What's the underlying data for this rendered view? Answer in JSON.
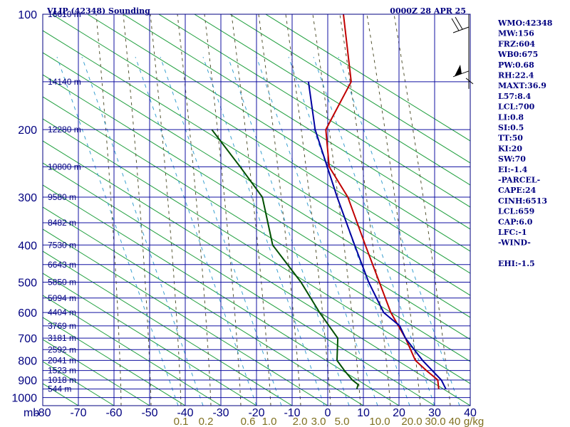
{
  "chart_data": {
    "type": "line",
    "title": "VLIP (42348) Sounding",
    "valid_time": "0000Z 28 APR 25",
    "pressure_axis_label": "mb",
    "temperature_ticks": [
      "-80",
      "-70",
      "-60",
      "-50",
      "-40",
      "-30",
      "-20",
      "-10",
      "0",
      "10",
      "20",
      "30",
      "40"
    ],
    "pressure_ticks": [
      "100",
      "200",
      "300",
      "400",
      "500",
      "600",
      "700",
      "800",
      "900",
      "1000"
    ],
    "mixing_ratio_labels": [
      "0.1",
      "0.2",
      "0.6",
      "1.0",
      "2.0",
      "3.0",
      "5.0",
      "10.0",
      "20.0",
      "30.0",
      "40",
      "g/kg"
    ],
    "height_labels": [
      {
        "p": 100,
        "label": "16610 m"
      },
      {
        "p": 150,
        "label": "14140 m"
      },
      {
        "p": 200,
        "label": "12280 m"
      },
      {
        "p": 250,
        "label": "10800 m"
      },
      {
        "p": 300,
        "label": "9580 m"
      },
      {
        "p": 350,
        "label": "8482 m"
      },
      {
        "p": 400,
        "label": "7530 m"
      },
      {
        "p": 450,
        "label": "6643 m"
      },
      {
        "p": 500,
        "label": "5850 m"
      },
      {
        "p": 550,
        "label": "5094 m"
      },
      {
        "p": 600,
        "label": "4404 m"
      },
      {
        "p": 650,
        "label": "3769 m"
      },
      {
        "p": 700,
        "label": "3181 m"
      },
      {
        "p": 750,
        "label": "2592 m"
      },
      {
        "p": 800,
        "label": "2041 m"
      },
      {
        "p": 850,
        "label": "1523 m"
      },
      {
        "p": 900,
        "label": "1018 m"
      },
      {
        "p": 950,
        "label": "544 m"
      }
    ],
    "xlim": [
      -80,
      40
    ],
    "ylim": [
      1050,
      100
    ],
    "y_scale": "log",
    "grid": true,
    "series": [
      {
        "name": "Temperature",
        "color": "#c00000",
        "points": [
          [
            950,
            28
          ],
          [
            925,
            27
          ],
          [
            900,
            26
          ],
          [
            850,
            21
          ],
          [
            800,
            16
          ],
          [
            700,
            9
          ],
          [
            600,
            0
          ],
          [
            500,
            -9
          ],
          [
            400,
            -20
          ],
          [
            300,
            -34
          ],
          [
            250,
            -45
          ],
          [
            200,
            -53
          ],
          [
            150,
            -55
          ],
          [
            100,
            -70
          ]
        ]
      },
      {
        "name": "Dewpoint",
        "color": "#005000",
        "points": [
          [
            950,
            5
          ],
          [
            925,
            4.5
          ],
          [
            900,
            2
          ],
          [
            850,
            -2
          ],
          [
            800,
            -6
          ],
          [
            700,
            -10
          ],
          [
            600,
            -20
          ],
          [
            500,
            -31
          ],
          [
            400,
            -46
          ],
          [
            300,
            -58
          ],
          [
            250,
            -70
          ],
          [
            200,
            -85
          ]
        ]
      },
      {
        "name": "Parcel",
        "color": "#0000a0",
        "points": [
          [
            950,
            30
          ],
          [
            900,
            27
          ],
          [
            800,
            18
          ],
          [
            700,
            9
          ],
          [
            650,
            5
          ],
          [
            600,
            -2
          ],
          [
            500,
            -12
          ],
          [
            400,
            -23
          ],
          [
            300,
            -37
          ],
          [
            200,
            -56
          ],
          [
            150,
            -67
          ]
        ]
      }
    ],
    "indices": [
      "WMO:42348",
      "MW:156",
      "FRZ:604",
      "WB0:675",
      "PW:0.68",
      "RH:22.4",
      "MAXT:36.9",
      "L57:8.4",
      "LCL:700",
      "LI:0.8",
      "SI:0.5",
      "TT:50",
      "KI:20",
      "SW:70",
      "EI:-1.4",
      "-PARCEL-",
      "CAPE:24",
      "CINH:6513",
      "LCL:659",
      "CAP:6.0",
      "LFC:-1",
      "-WIND-",
      "",
      "EHI:-1.5"
    ],
    "wind_barbs": [
      {
        "p": 100,
        "barb": "two-full"
      },
      {
        "p": 150,
        "barb": "pennant"
      }
    ]
  }
}
